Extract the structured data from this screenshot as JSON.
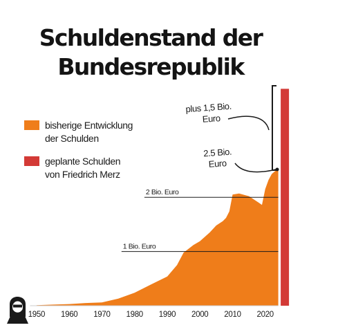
{
  "colors": {
    "history": "#ef7d1a",
    "planned": "#d33a36",
    "text": "#1a1a1a"
  },
  "logo": {
    "icon": "hooded-figure-logo-icon"
  },
  "chart_data": {
    "type": "area",
    "title": [
      "Schuldenstand der",
      "Bundesrepublik"
    ],
    "xlabel": "",
    "ylabel": "",
    "xlim": [
      1946,
      2030
    ],
    "ylim": [
      0,
      4.4
    ],
    "x_ticks": [
      1950,
      1960,
      1970,
      1980,
      1990,
      2000,
      2010,
      2020
    ],
    "legend": [
      {
        "label": [
          "bisherige Entwicklung",
          "der Schulden"
        ],
        "color": "#ef7d1a"
      },
      {
        "label": [
          "geplante Schulden",
          "von Friedrich Merz"
        ],
        "color": "#d33a36"
      }
    ],
    "reference_lines": [
      {
        "y": 1,
        "label": "1 Bio. Euro"
      },
      {
        "y": 2,
        "label": "2 Bio. Euro"
      }
    ],
    "annotations": [
      {
        "label": [
          "2.5 Bio.",
          "Euro"
        ]
      },
      {
        "label": [
          "plus 1,5 Bio.",
          "Euro"
        ]
      }
    ],
    "series": [
      {
        "name": "bisherige Entwicklung der Schulden",
        "x": [
          1950,
          1955,
          1960,
          1965,
          1970,
          1975,
          1980,
          1985,
          1990,
          1993,
          1995,
          1998,
          2000,
          2003,
          2005,
          2007,
          2008,
          2009,
          2010,
          2012,
          2015,
          2018,
          2019,
          2020,
          2021,
          2022,
          2023,
          2024
        ],
        "values": [
          0.01,
          0.02,
          0.03,
          0.05,
          0.06,
          0.13,
          0.24,
          0.39,
          0.54,
          0.75,
          0.98,
          1.12,
          1.19,
          1.35,
          1.48,
          1.56,
          1.62,
          1.74,
          2.05,
          2.07,
          2.02,
          1.9,
          1.86,
          2.15,
          2.32,
          2.43,
          2.48,
          2.52
        ]
      },
      {
        "name": "geplante Schulden von Friedrich Merz",
        "x": [
          2026,
          2026
        ],
        "values": [
          0,
          4.0
        ]
      }
    ]
  }
}
